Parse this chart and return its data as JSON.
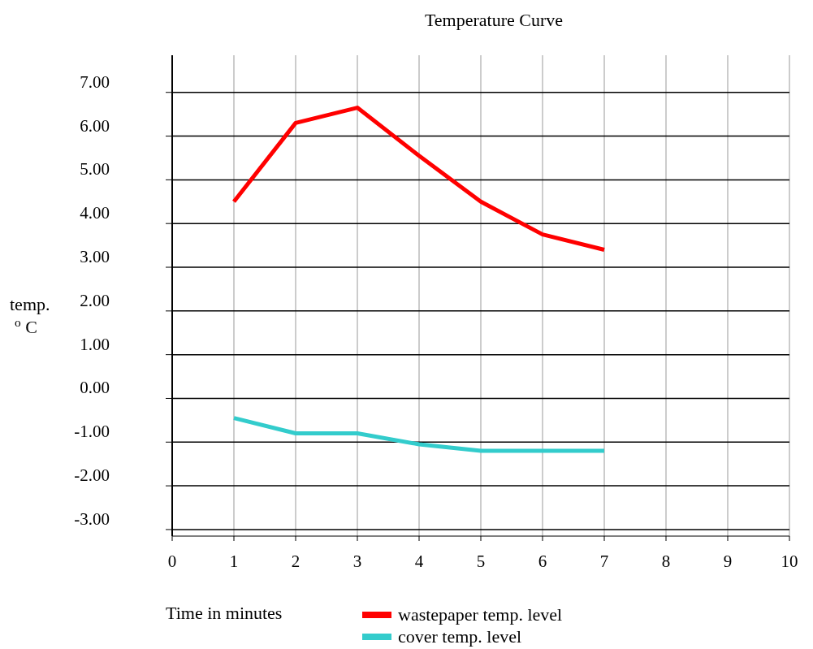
{
  "chart_data": {
    "type": "line",
    "title": "Temperature Curve",
    "xlabel": "Time in minutes",
    "ylabel": "temp.\n$^{o}$ C",
    "x": [
      1,
      2,
      3,
      4,
      5,
      6,
      7
    ],
    "series": [
      {
        "name": "wastepaper temp. level",
        "color": "#ff0000",
        "values": [
          4.5,
          6.3,
          6.65,
          5.55,
          4.5,
          3.75,
          3.4
        ]
      },
      {
        "name": "cover temp. level",
        "color": "#33cccc",
        "values": [
          -0.45,
          -0.8,
          -0.8,
          -1.05,
          -1.2,
          -1.2,
          -1.2
        ]
      }
    ],
    "xlim": [
      0,
      10
    ],
    "xticks": [
      0,
      1,
      2,
      3,
      4,
      5,
      6,
      7,
      8,
      9,
      10
    ],
    "ylim": [
      -3.15,
      7.85
    ],
    "yticks": [
      {
        "value": -3,
        "label": "-3.00"
      },
      {
        "value": -2,
        "label": "-2.00"
      },
      {
        "value": -1,
        "label": "-1.00"
      },
      {
        "value": 0,
        "label": "0.00"
      },
      {
        "value": 1,
        "label": "1.00"
      },
      {
        "value": 2,
        "label": "2.00"
      },
      {
        "value": 3,
        "label": "3.00"
      },
      {
        "value": 4,
        "label": "4.00"
      },
      {
        "value": 5,
        "label": "5.00"
      },
      {
        "value": 6,
        "label": "6.00"
      },
      {
        "value": 7,
        "label": "7.00"
      }
    ],
    "grid": true,
    "legend": "bottom right",
    "marker": "none",
    "line_style": "solid"
  }
}
